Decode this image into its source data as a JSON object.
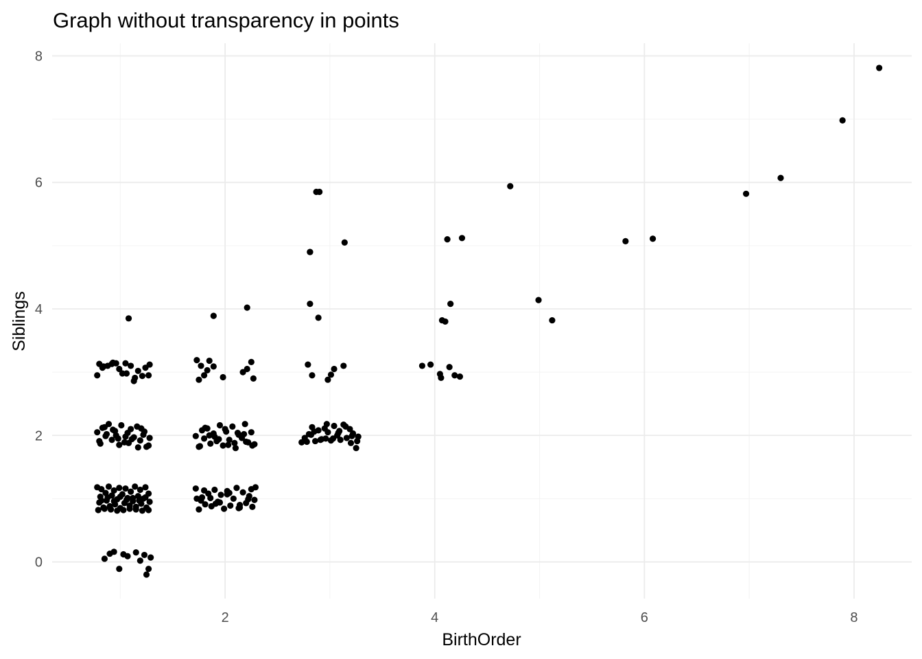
{
  "chart_data": {
    "type": "scatter",
    "title": "Graph without transparency in points",
    "xlabel": "BirthOrder",
    "ylabel": "Siblings",
    "xlim": [
      0.35,
      8.55
    ],
    "ylim": [
      -0.58,
      8.2
    ],
    "x_ticks": [
      2,
      4,
      6,
      8
    ],
    "y_ticks": [
      0,
      2,
      4,
      6,
      8
    ],
    "grid": true,
    "legend": "none",
    "series": [
      {
        "x": [
          0.8,
          0.83,
          0.88,
          0.93,
          0.96,
          1.02,
          1.05,
          1.1,
          1.14,
          1.17,
          1.21,
          1.27,
          1.28,
          0.78,
          0.84,
          0.92,
          0.99,
          1.06,
          1.13,
          1.24,
          0.78,
          0.8,
          0.81,
          0.82,
          0.84,
          0.86,
          0.87,
          0.89,
          0.9,
          0.92,
          0.94,
          0.95,
          0.97,
          0.99,
          1.0,
          1.02,
          1.04,
          1.05,
          1.07,
          1.09,
          1.1,
          1.12,
          1.14,
          1.15,
          1.17,
          1.19,
          1.2,
          1.22,
          1.24,
          1.25,
          1.27,
          1.28,
          0.79,
          0.85,
          0.91,
          0.97,
          1.03,
          1.09,
          1.15,
          1.21,
          1.27,
          0.82,
          0.88,
          0.94,
          1.0,
          1.06,
          1.12,
          1.18,
          1.24,
          0.78,
          0.8,
          0.83,
          0.86,
          0.89,
          0.92,
          0.95,
          0.98,
          1.01,
          1.04,
          1.07,
          1.1,
          1.13,
          1.16,
          1.19,
          1.22,
          1.25,
          1.28,
          0.81,
          0.87,
          0.93,
          0.99,
          1.05,
          1.11,
          1.17,
          1.23,
          1.27,
          0.85,
          0.96,
          1.08,
          1.2,
          0.85,
          0.9,
          0.94,
          0.99,
          1.03,
          1.07,
          1.15,
          1.19,
          1.23,
          1.25,
          1.27,
          1.29,
          1.08,
          1.73,
          1.77,
          1.8,
          1.85,
          1.89,
          1.98,
          2.17,
          2.21,
          2.25,
          2.27,
          1.75,
          1.83,
          1.72,
          1.75,
          1.78,
          1.8,
          1.83,
          1.86,
          1.89,
          1.92,
          1.95,
          1.98,
          2.01,
          2.04,
          2.07,
          2.1,
          2.13,
          2.16,
          2.19,
          2.22,
          2.25,
          2.28,
          1.76,
          1.85,
          1.94,
          2.03,
          2.12,
          2.2,
          1.81,
          1.9,
          2.0,
          2.09,
          2.18,
          2.26,
          1.72,
          1.75,
          1.78,
          1.81,
          1.84,
          1.87,
          1.9,
          1.93,
          1.96,
          1.99,
          2.02,
          2.05,
          2.08,
          2.11,
          2.14,
          2.17,
          2.2,
          2.23,
          2.26,
          2.29,
          1.77,
          1.86,
          1.95,
          2.04,
          2.13,
          2.22,
          1.8,
          1.91,
          2.02,
          2.14,
          2.25,
          1.73,
          2.28,
          1.89,
          2.21,
          2.79,
          2.83,
          2.89,
          2.98,
          3.04,
          3.13,
          2.81,
          3.01,
          2.73,
          2.76,
          2.8,
          2.83,
          2.86,
          2.89,
          2.92,
          2.95,
          2.98,
          3.01,
          3.04,
          3.07,
          3.1,
          3.13,
          3.16,
          3.19,
          3.22,
          3.25,
          3.27,
          2.78,
          2.85,
          2.91,
          2.97,
          3.03,
          3.09,
          3.15,
          3.21,
          3.26,
          2.82,
          2.96,
          3.08,
          3.2,
          2.81,
          2.9,
          2.81,
          3.14,
          2.87,
          3.88,
          3.96,
          4.05,
          4.14,
          4.24,
          4.06,
          4.19,
          4.07,
          4.1,
          4.15,
          4.12,
          4.26,
          4.72,
          4.99,
          5.12,
          5.82,
          6.08,
          6.97,
          7.3,
          7.89,
          8.24
        ],
        "y": [
          3.13,
          3.07,
          3.1,
          3.15,
          3.14,
          2.98,
          3.14,
          3.1,
          2.91,
          3.02,
          2.94,
          2.95,
          3.12,
          2.95,
          3.09,
          3.13,
          3.05,
          2.98,
          2.86,
          3.07,
          1.18,
          0.94,
          1.03,
          1.15,
          0.86,
          1.09,
          0.97,
          1.19,
          0.88,
          1.05,
          1.13,
          0.91,
          0.99,
          1.17,
          0.85,
          1.07,
          0.93,
          1.16,
          1.01,
          0.89,
          1.11,
          0.96,
          1.19,
          0.87,
          1.04,
          1.14,
          0.92,
          1.0,
          1.18,
          0.86,
          1.08,
          0.95,
          0.82,
          0.84,
          0.83,
          0.81,
          0.82,
          0.84,
          0.83,
          0.81,
          0.82,
          0.97,
          1.02,
          0.96,
          1.03,
          0.98,
          1.01,
          0.97,
          1.02,
          2.05,
          1.91,
          2.12,
          1.99,
          2.18,
          1.93,
          2.07,
          1.95,
          2.16,
          1.89,
          2.04,
          2.1,
          1.97,
          2.14,
          1.92,
          2.01,
          1.82,
          1.96,
          1.87,
          2.02,
          2.09,
          1.85,
          1.98,
          1.94,
          1.81,
          2.06,
          1.84,
          2.13,
          2.0,
          1.88,
          2.11,
          0.05,
          0.13,
          0.16,
          -0.11,
          0.12,
          0.09,
          0.15,
          0.02,
          0.11,
          -0.2,
          -0.11,
          0.07,
          3.85,
          3.19,
          3.1,
          2.95,
          3.18,
          3.09,
          2.92,
          3.0,
          3.05,
          3.16,
          2.9,
          2.88,
          3.03,
          1.99,
          1.82,
          2.08,
          1.95,
          2.11,
          1.87,
          2.03,
          1.91,
          2.16,
          1.84,
          2.06,
          1.93,
          2.14,
          1.8,
          2.01,
          1.96,
          2.18,
          1.89,
          2.05,
          1.86,
          1.83,
          2.0,
          1.94,
          1.85,
          2.04,
          1.9,
          2.12,
          1.98,
          2.1,
          1.88,
          2.02,
          1.84,
          1.16,
          0.83,
          1.02,
          0.91,
          1.08,
          0.88,
          1.14,
          0.95,
          1.06,
          0.84,
          1.12,
          0.89,
          1.0,
          1.17,
          0.86,
          1.1,
          0.93,
          1.04,
          0.87,
          1.18,
          0.97,
          1.01,
          0.94,
          1.09,
          0.85,
          0.99,
          1.13,
          0.92,
          1.07,
          0.9,
          1.15,
          1.0,
          0.98,
          3.89,
          4.02,
          3.12,
          2.95,
          3.86,
          2.88,
          3.05,
          3.1,
          4.08,
          2.96,
          1.89,
          1.96,
          2.02,
          2.13,
          1.91,
          2.08,
          1.94,
          2.11,
          2.05,
          1.92,
          2.15,
          2.0,
          1.93,
          2.17,
          1.96,
          2.1,
          2.03,
          1.8,
          1.98,
          1.9,
          2.06,
          1.93,
          2.18,
          1.95,
          2.07,
          2.14,
          1.99,
          1.91,
          2.01,
          1.95,
          2.04,
          1.88,
          4.9,
          5.85,
          4.9,
          5.05,
          5.85,
          3.1,
          3.12,
          2.97,
          3.08,
          2.93,
          2.91,
          2.95,
          3.82,
          3.8,
          4.08,
          5.1,
          5.12,
          5.94,
          4.14,
          3.82,
          5.07,
          5.11,
          5.82,
          6.07,
          6.98,
          7.81
        ]
      }
    ]
  }
}
